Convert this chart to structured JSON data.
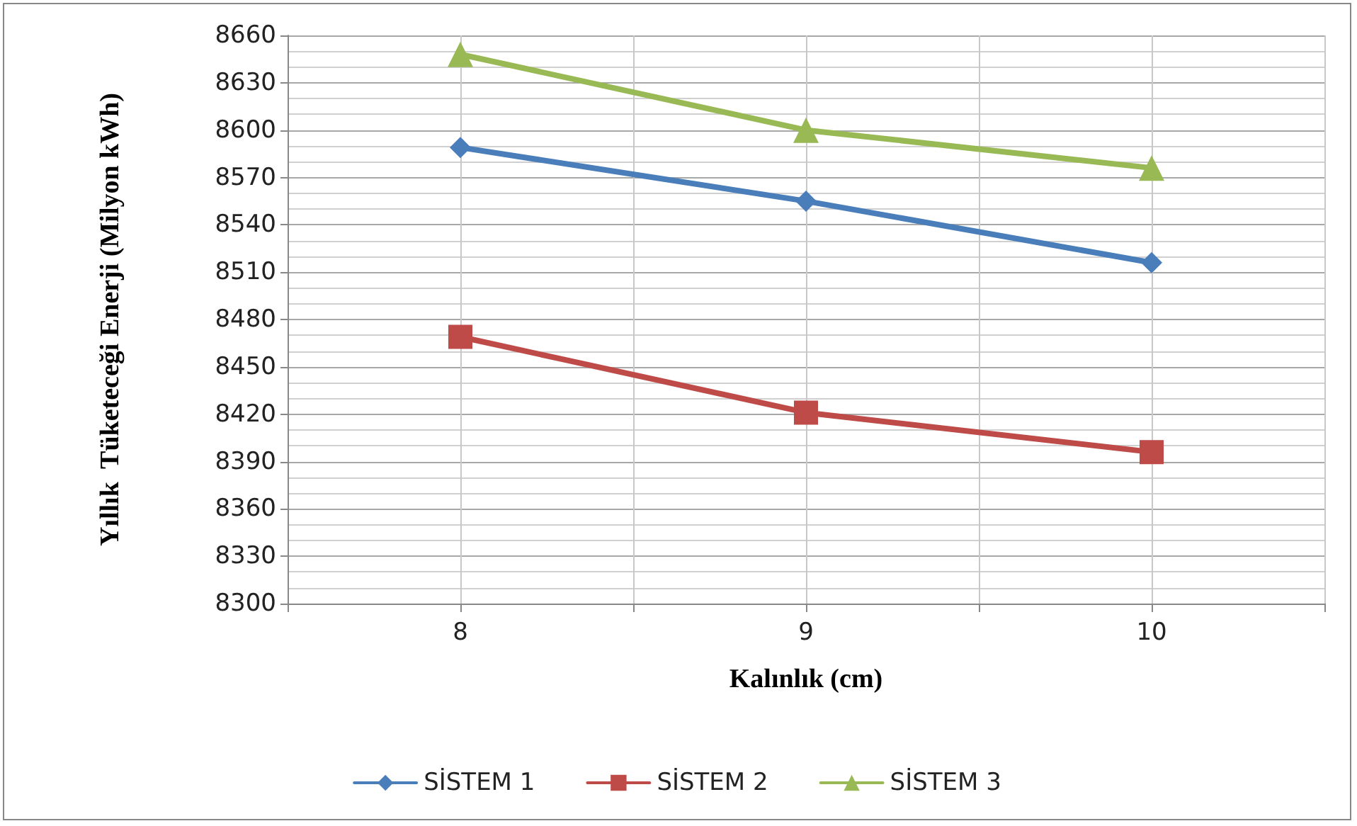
{
  "chart_data": {
    "type": "line",
    "x": [
      8,
      9,
      10
    ],
    "xlim": [
      7.5,
      10.5
    ],
    "xticks": [
      {
        "value": 7.5,
        "label": null
      },
      8,
      {
        "value": 8.5,
        "label": null
      },
      9,
      {
        "value": 9.5,
        "label": null
      },
      10,
      {
        "value": 10.5,
        "label": null
      }
    ],
    "xlabel": "Kalınlık (cm)",
    "ylabel": "Yıllık  Tüketeceği Enerji (Milyon kWh)",
    "ylim": [
      8300,
      8660
    ],
    "yticks": [
      8300,
      8330,
      8360,
      8390,
      8420,
      8450,
      8480,
      8510,
      8540,
      8570,
      8600,
      8630,
      8660
    ],
    "series": [
      {
        "name": "SİSTEM 1",
        "color": "#4a7ebb",
        "marker": "diamond",
        "values": [
          8589,
          8555,
          8516
        ]
      },
      {
        "name": "SİSTEM 2",
        "color": "#be4b48",
        "marker": "square",
        "values": [
          8469,
          8421,
          8396
        ]
      },
      {
        "name": "SİSTEM 3",
        "color": "#98b954",
        "marker": "triangle",
        "values": [
          8648,
          8600,
          8576
        ]
      }
    ],
    "grid": true,
    "legend": "bottom",
    "line_style": "solid"
  }
}
